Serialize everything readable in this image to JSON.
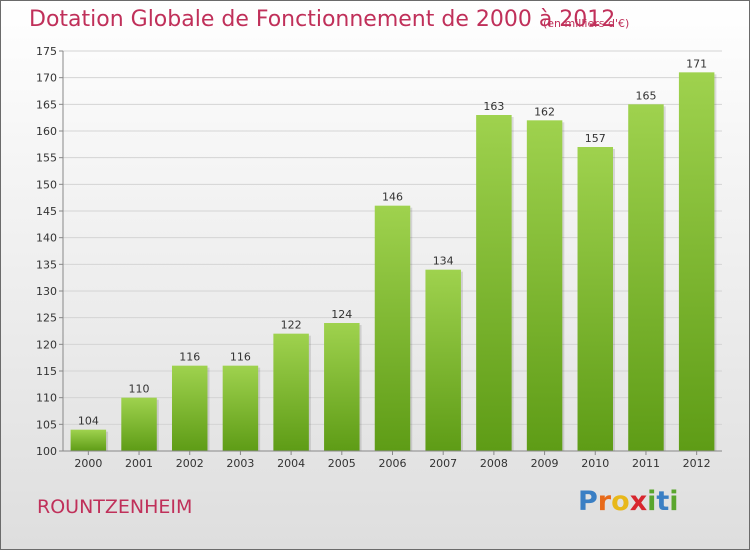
{
  "header": {
    "title": "Dotation Globale de Fonctionnement de 2000 à 2012",
    "units": "(en milliers d'€)"
  },
  "footer": {
    "commune": "ROUNTZENHEIM",
    "logo_letters": [
      "P",
      "r",
      "o",
      "x",
      "i",
      "t",
      "i"
    ],
    "logo_colors": [
      "#3a7fc4",
      "#e86a1a",
      "#e8b81a",
      "#d8262e",
      "#5aa62e",
      "#3a7fc4",
      "#5aa62e"
    ]
  },
  "chart_data": {
    "type": "bar",
    "categories": [
      "2000",
      "2001",
      "2002",
      "2003",
      "2004",
      "2005",
      "2006",
      "2007",
      "2008",
      "2009",
      "2010",
      "2011",
      "2012"
    ],
    "values": [
      104,
      110,
      116,
      116,
      122,
      124,
      146,
      134,
      163,
      162,
      157,
      165,
      171
    ],
    "title": "Dotation Globale de Fonctionnement de 2000 à 2012",
    "subtitle": "(en milliers d'€)",
    "ylim": [
      100,
      175
    ],
    "yticks": [
      100,
      105,
      110,
      115,
      120,
      125,
      130,
      135,
      140,
      145,
      150,
      155,
      160,
      165,
      170,
      175
    ],
    "grid": true,
    "bar_color_top": "#9fd24e",
    "bar_color_bottom": "#5e9c16"
  }
}
